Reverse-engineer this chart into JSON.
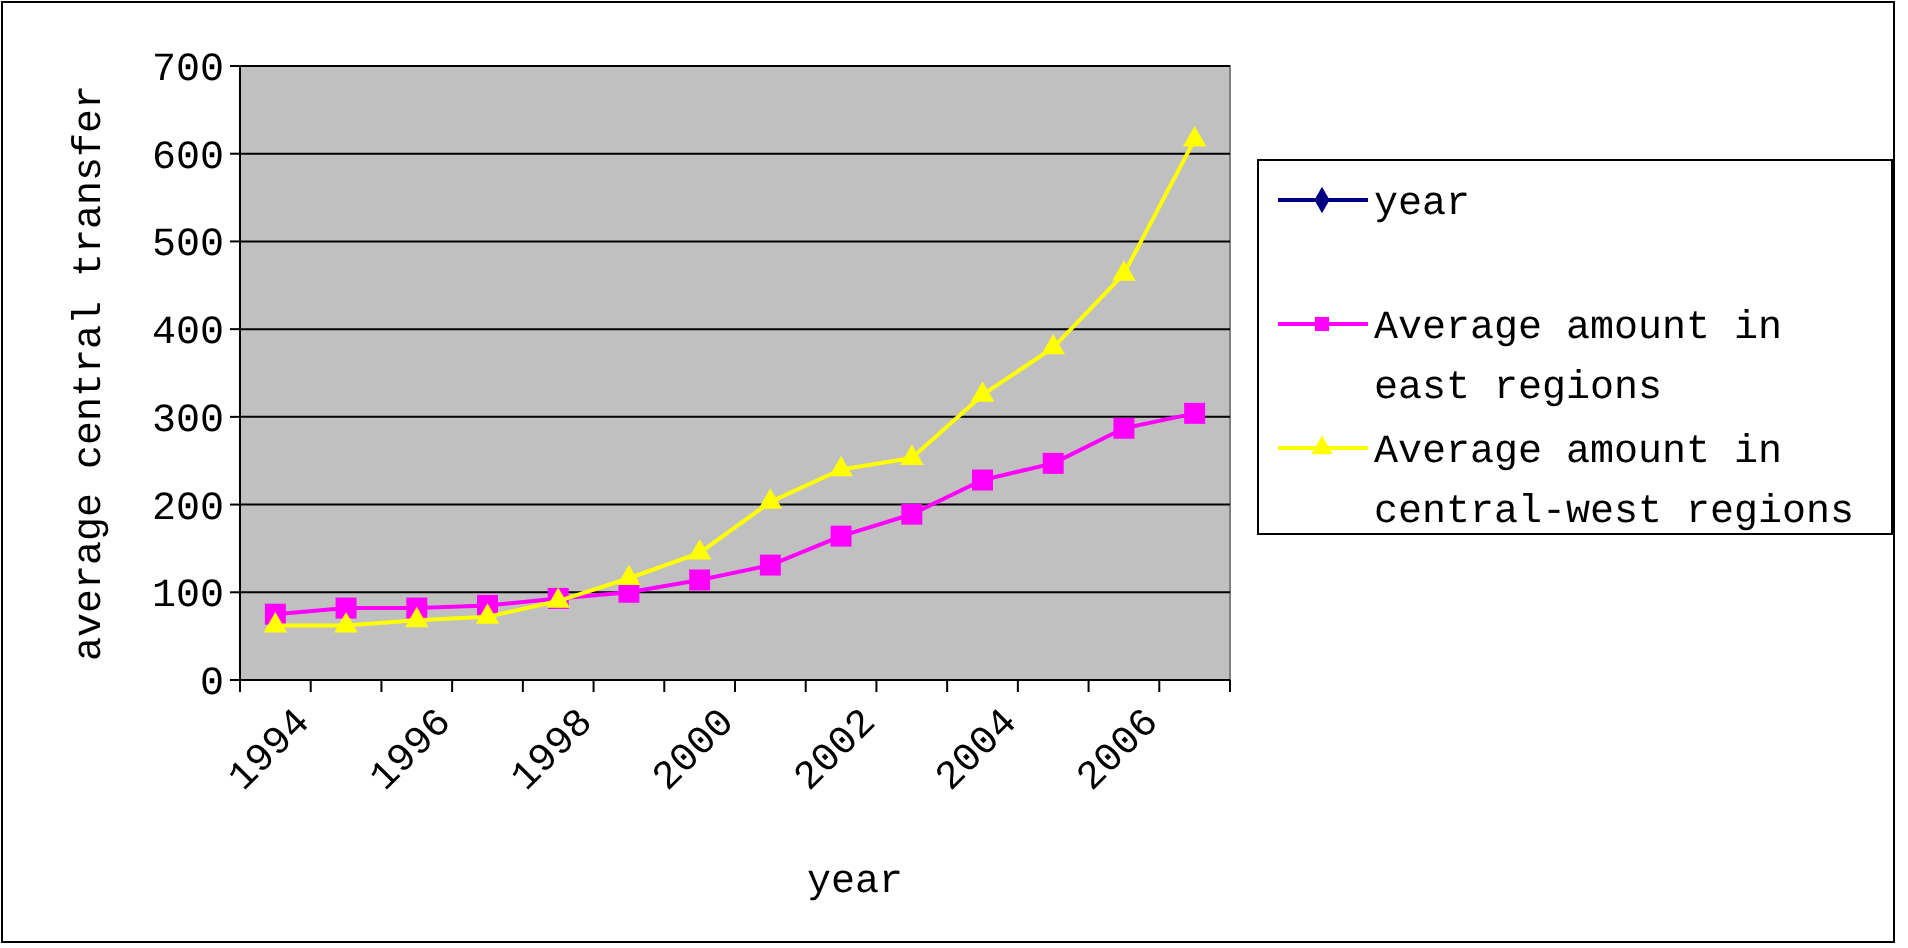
{
  "chart_data": {
    "type": "line",
    "xlabel": "year",
    "ylabel": "average central transfer",
    "categories": [
      "1994",
      null,
      "1996",
      null,
      "1998",
      null,
      "2000",
      null,
      "2002",
      null,
      "2004",
      null,
      "2006",
      null
    ],
    "series": [
      {
        "name": "year",
        "color": "#000080",
        "marker": "diamond",
        "values": [
          null,
          null,
          null,
          null,
          null,
          null,
          null,
          null,
          null,
          null,
          null,
          null,
          null,
          null
        ]
      },
      {
        "name": "Average amount in east regions",
        "color": "#ff00ff",
        "marker": "square",
        "values": [
          75,
          82,
          82,
          85,
          93,
          100,
          114,
          131,
          164,
          189,
          228,
          247,
          287,
          304
        ]
      },
      {
        "name": "Average amount in central-west regions",
        "color": "#ffff00",
        "marker": "triangle",
        "values": [
          62,
          62,
          68,
          72,
          90,
          116,
          145,
          203,
          240,
          253,
          325,
          379,
          463,
          616
        ]
      }
    ],
    "ylim": [
      0,
      700
    ],
    "yticks": [
      0,
      100,
      200,
      300,
      400,
      500,
      600,
      700
    ],
    "grid": "y",
    "legend": "right"
  }
}
